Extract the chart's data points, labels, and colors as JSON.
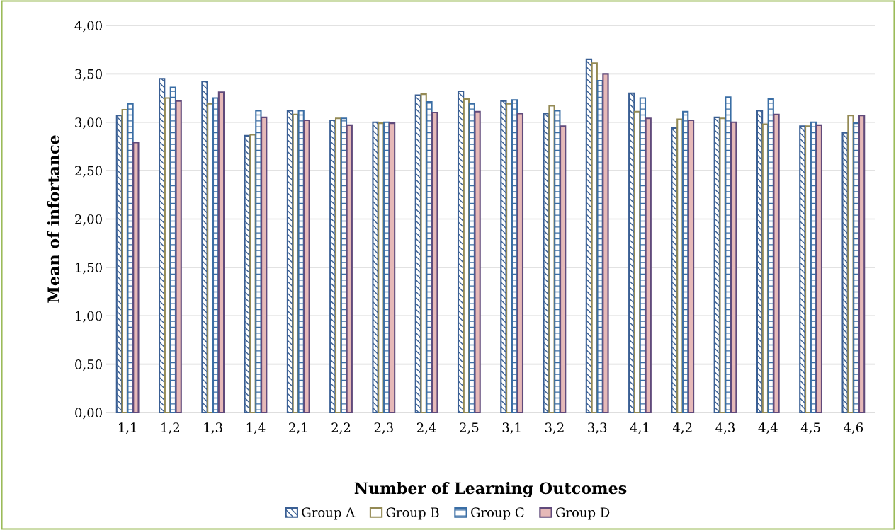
{
  "chart_data": {
    "type": "bar",
    "xlabel": "Number of Learning Outcomes",
    "ylabel": "Mean of infortance",
    "categories": [
      "1,1",
      "1,2",
      "1,3",
      "1,4",
      "2,1",
      "2,2",
      "2,3",
      "2,4",
      "2,5",
      "3,1",
      "3,2",
      "3,3",
      "4,1",
      "4,2",
      "4,3",
      "4,4",
      "4,5",
      "4,6"
    ],
    "series": [
      {
        "name": "Group A",
        "color": "#3a5f94",
        "values": [
          3.07,
          3.45,
          3.42,
          2.86,
          3.12,
          3.02,
          3.0,
          3.28,
          3.32,
          3.22,
          3.09,
          3.65,
          3.3,
          2.94,
          3.05,
          3.12,
          2.96,
          2.89
        ]
      },
      {
        "name": "Group B",
        "color": "#948a54",
        "values": [
          3.13,
          3.25,
          3.19,
          2.87,
          3.08,
          3.04,
          2.99,
          3.29,
          3.24,
          3.19,
          3.17,
          3.61,
          3.11,
          3.03,
          3.04,
          2.98,
          2.96,
          3.07
        ]
      },
      {
        "name": "Group C",
        "color": "#3a6ea5",
        "values": [
          3.19,
          3.36,
          3.25,
          3.12,
          3.12,
          3.04,
          3.0,
          3.21,
          3.19,
          3.23,
          3.12,
          3.43,
          3.25,
          3.11,
          3.26,
          3.24,
          3.0,
          2.99
        ]
      },
      {
        "name": "Group D",
        "color": "#e6b9b8",
        "values": [
          2.79,
          3.22,
          3.31,
          3.05,
          3.02,
          2.97,
          2.99,
          3.1,
          3.11,
          3.09,
          2.96,
          3.5,
          3.04,
          3.02,
          3.0,
          3.08,
          2.97,
          3.07
        ]
      }
    ],
    "ylim": [
      0,
      4
    ],
    "yticks": [
      {
        "value": 0,
        "label": "0,00"
      },
      {
        "value": 0.5,
        "label": "0,50"
      },
      {
        "value": 1,
        "label": "1,00"
      },
      {
        "value": 1.5,
        "label": "1,50"
      },
      {
        "value": 2,
        "label": "2,00"
      },
      {
        "value": 2.5,
        "label": "2,50"
      },
      {
        "value": 3,
        "label": "3,00"
      },
      {
        "value": 3.5,
        "label": "3,50"
      },
      {
        "value": 4,
        "label": "4,00"
      }
    ],
    "grid": "y",
    "legend": "bottom"
  }
}
